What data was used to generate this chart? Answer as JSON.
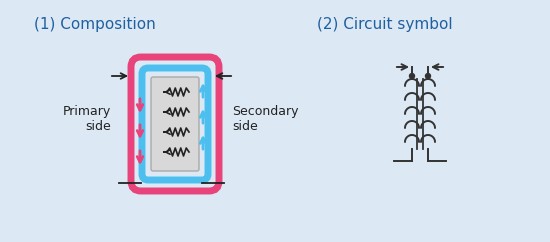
{
  "bg_color": "#dce9f5",
  "border_color": "#5b9bd5",
  "title1": "(1) Composition",
  "title2": "(2) Circuit symbol",
  "primary_label": "Primary\nside",
  "secondary_label": "Secondary\nside",
  "pink_color": "#e8437a",
  "blue_color": "#4dbfef",
  "core_fill": "#d8d8d8",
  "core_border": "#aaaaaa",
  "arrow_color": "#222222",
  "text_color": "#2060a0",
  "label_color": "#222222",
  "fig_w": 5.5,
  "fig_h": 2.42,
  "dpi": 100
}
